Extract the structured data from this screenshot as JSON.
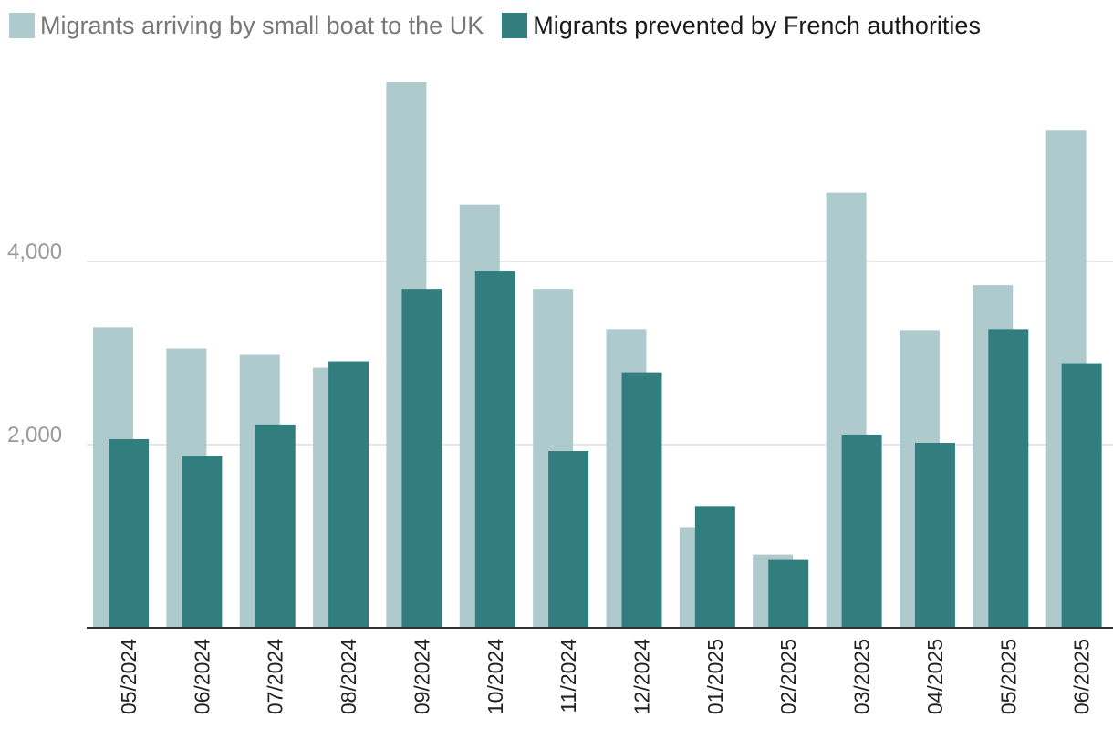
{
  "legend": {
    "arrivals_label": "Migrants arriving by small boat to the UK",
    "prevented_label": "Migrants prevented by French authorities"
  },
  "colors": {
    "arrivals": "#aecacd",
    "prevented": "#327d7e",
    "grid": "#dddddd",
    "axis": "#333333"
  },
  "chart_data": {
    "type": "bar",
    "title": "",
    "xlabel": "",
    "ylabel": "",
    "ylim": [
      0,
      6000
    ],
    "yticks": [
      2000,
      4000
    ],
    "ytick_labels": [
      "2,000",
      "4,000"
    ],
    "categories": [
      "05/2024",
      "06/2024",
      "07/2024",
      "08/2024",
      "09/2024",
      "10/2024",
      "11/2024",
      "12/2024",
      "01/2025",
      "02/2025",
      "03/2025",
      "04/2025",
      "05/2025",
      "06/2025"
    ],
    "series": [
      {
        "name": "Migrants arriving by small boat to the UK",
        "values": [
          3280,
          3050,
          2980,
          2840,
          5960,
          4620,
          3700,
          3260,
          1100,
          800,
          4750,
          3250,
          3740,
          5430
        ]
      },
      {
        "name": "Migrants prevented by French authorities",
        "values": [
          2060,
          1880,
          2220,
          2910,
          3700,
          3900,
          1930,
          2790,
          1330,
          740,
          2110,
          2020,
          3260,
          2890
        ]
      }
    ]
  }
}
